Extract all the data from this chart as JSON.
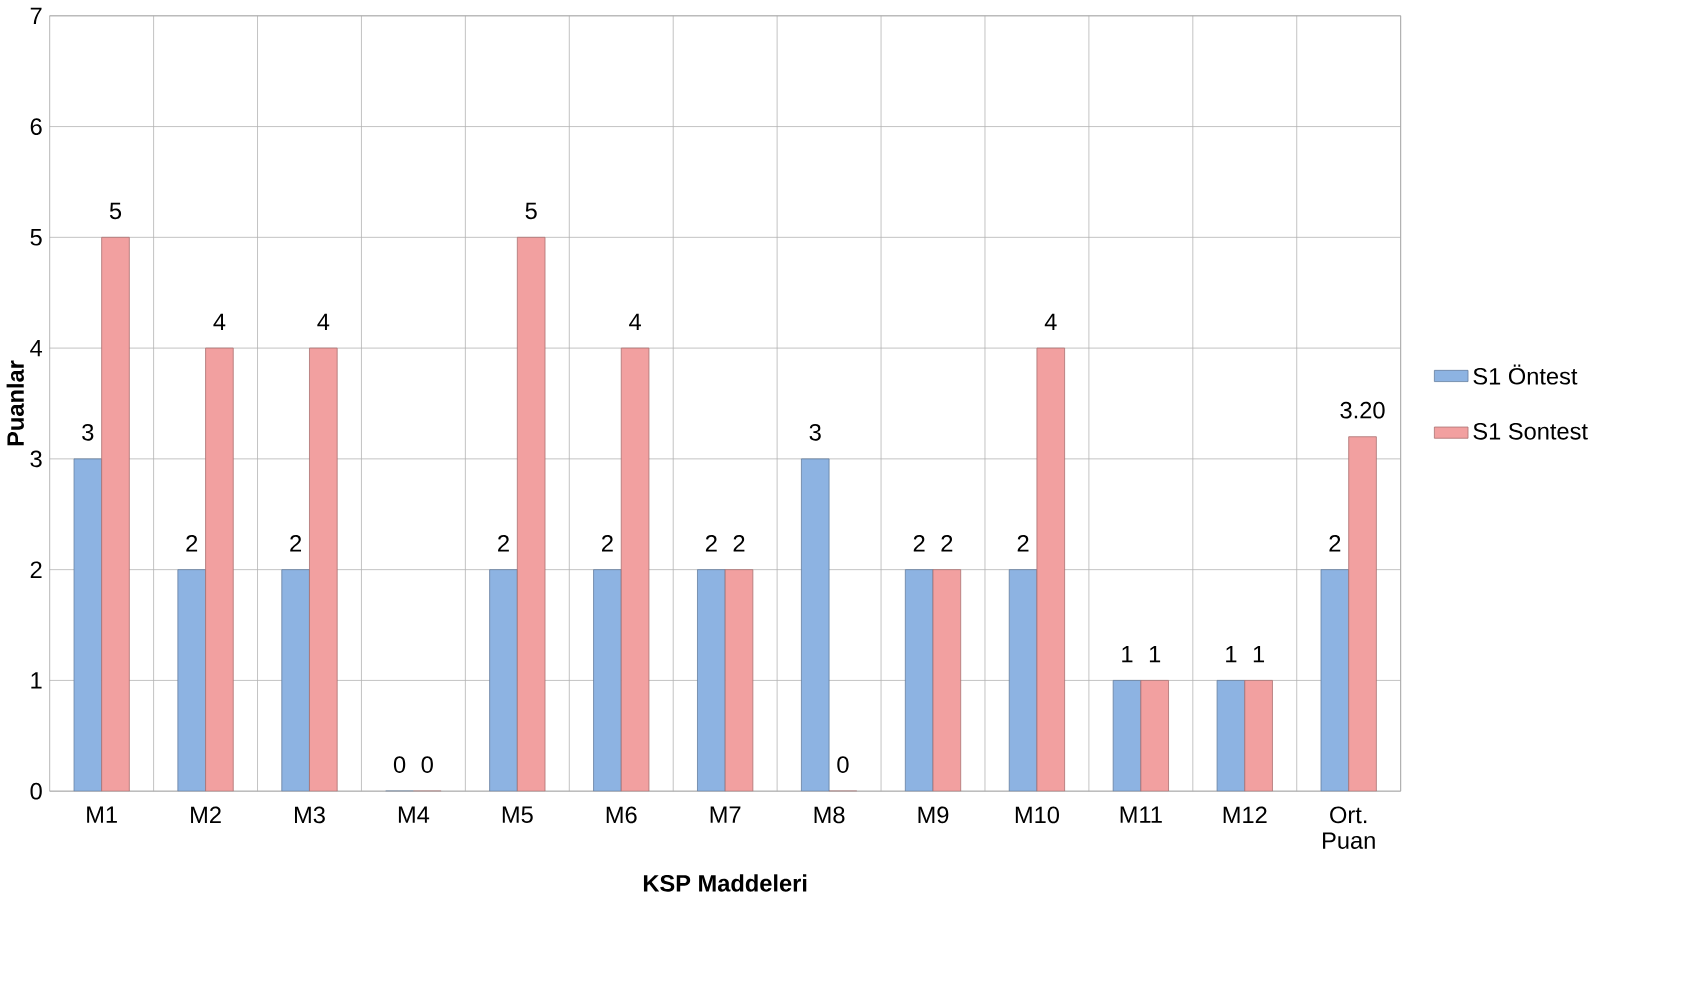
{
  "chart_data": {
    "type": "bar",
    "xlabel": "KSP Maddeleri",
    "ylabel": "Puanlar",
    "categories": [
      "M1",
      "M2",
      "M3",
      "M4",
      "M5",
      "M6",
      "M7",
      "M8",
      "M9",
      "M10",
      "M11",
      "M12",
      "Ort. Puan"
    ],
    "series": [
      {
        "name": "S1 Öntest",
        "color": "#8db3e2",
        "values": [
          3,
          2,
          2,
          0,
          2,
          2,
          2,
          3,
          2,
          2,
          1,
          1,
          2
        ],
        "value_labels": [
          "3",
          "2",
          "2",
          "0",
          "2",
          "2",
          "2",
          "3",
          "2",
          "2",
          "1",
          "1",
          "2"
        ]
      },
      {
        "name": "S1 Sontest",
        "color": "#f2a0a0",
        "values": [
          5,
          4,
          4,
          0,
          5,
          4,
          2,
          0,
          2,
          4,
          1,
          1,
          3.2
        ],
        "value_labels": [
          "5",
          "4",
          "4",
          "0",
          "5",
          "4",
          "2",
          "0",
          "2",
          "4",
          "1",
          "1",
          "3.20"
        ]
      }
    ],
    "ylim": [
      0,
      7
    ],
    "yticks": [
      0,
      1,
      2,
      3,
      4,
      5,
      6,
      7
    ],
    "grid": true,
    "legend": "right"
  }
}
